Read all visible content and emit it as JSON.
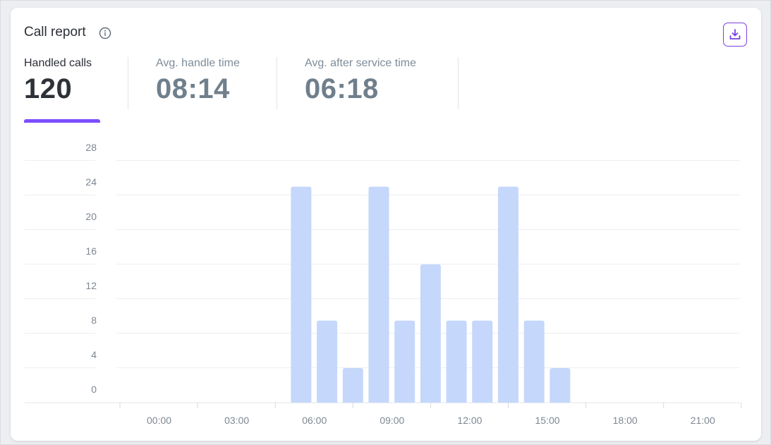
{
  "header": {
    "title": "Call report",
    "info_icon": "info-circle-icon",
    "download_icon": "download-icon",
    "accent_color": "#7c4dff"
  },
  "kpis": [
    {
      "label": "Handled calls",
      "value": "120",
      "active": true
    },
    {
      "label": "Avg. handle time",
      "value": "08:14",
      "active": false
    },
    {
      "label": "Avg. after service time",
      "value": "06:18",
      "active": false
    }
  ],
  "chart_data": {
    "type": "bar",
    "x": [
      5.5,
      6.5,
      7.5,
      8.5,
      9.5,
      10.5,
      11.5,
      12.5,
      13.5,
      14.5,
      15.5,
      16.5
    ],
    "values": [
      25,
      9.5,
      4,
      25,
      9.5,
      16,
      9.5,
      9.5,
      25,
      9.5,
      4,
      0
    ],
    "x_tick_labels": [
      "00:00",
      "03:00",
      "06:00",
      "09:00",
      "12:00",
      "15:00",
      "18:00",
      "21:00"
    ],
    "y_ticks": [
      28,
      24,
      20,
      16,
      12,
      8,
      4,
      0
    ],
    "ylim": [
      0,
      28
    ],
    "bar_color": "#c5d7fb",
    "grid": true,
    "xlabel": "",
    "ylabel": ""
  }
}
